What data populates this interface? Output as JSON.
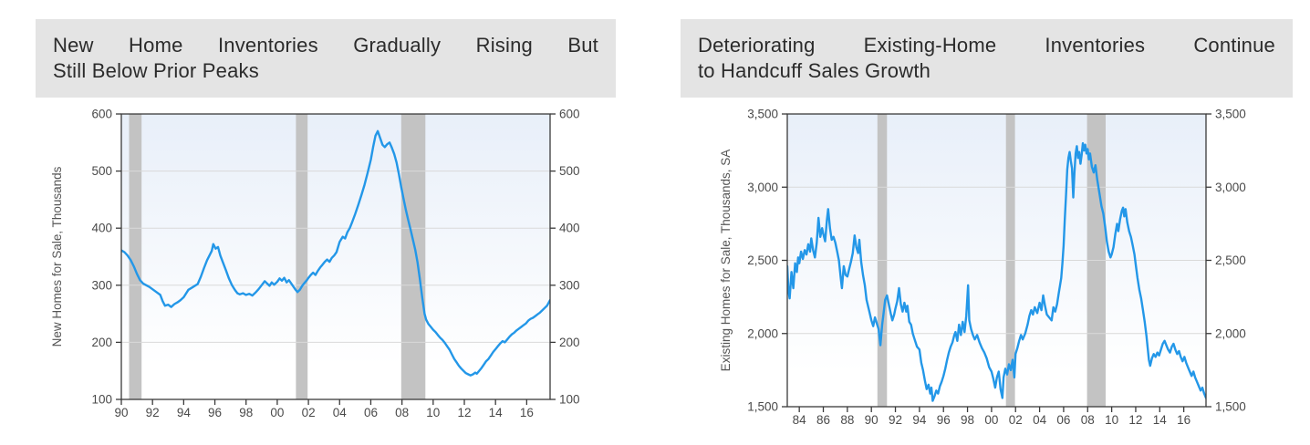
{
  "page": {
    "background": "#ffffff"
  },
  "charts_common": {
    "title_bg": "#e4e4e4",
    "title_color": "#2b2b2b",
    "axis_color": "#3a3a3a",
    "tick_label_color": "#4a4a4a",
    "y_axis_title_color": "#555555",
    "grid_color": "#d9d9d9",
    "plot_bg_top": "#e8eff9",
    "plot_bg_bottom": "#ffffff",
    "recession_band_color": "#c3c3c3",
    "line_color": "#2397e8"
  },
  "chart_data": [
    {
      "type": "line",
      "title": "New Home Inventories Gradually Rising But Still Below Prior Peaks",
      "title_lines": [
        "New Home Inventories Gradually Rising But",
        "Still Below Prior Peaks"
      ],
      "ylabel": "New Homes for Sale, Thousands",
      "xlim": [
        1990,
        2017.5
      ],
      "ylim": [
        100,
        600
      ],
      "yticks": [
        100,
        200,
        300,
        400,
        500,
        600
      ],
      "ytick_labels": [
        "100",
        "200",
        "300",
        "400",
        "500",
        "600"
      ],
      "xticks": [
        1990,
        1992,
        1994,
        1996,
        1998,
        2000,
        2002,
        2004,
        2006,
        2008,
        2010,
        2012,
        2014,
        2016
      ],
      "xtick_labels": [
        "90",
        "92",
        "94",
        "96",
        "98",
        "00",
        "02",
        "04",
        "06",
        "08",
        "10",
        "12",
        "14",
        "16"
      ],
      "grid": "horizontal-light",
      "legend": "none",
      "recession_bands": [
        [
          1990.5,
          1991.3
        ],
        [
          2001.2,
          2001.95
        ],
        [
          2007.95,
          2009.5
        ]
      ],
      "series": [
        {
          "x": [
            1990.0,
            1990.2,
            1990.4,
            1990.6,
            1990.8,
            1991.0,
            1991.2,
            1991.4,
            1991.6,
            1991.8,
            1992.0,
            1992.25,
            1992.5,
            1992.65,
            1992.8,
            1993.0,
            1993.2,
            1993.4,
            1993.6,
            1993.8,
            1994.0,
            1994.3,
            1994.6,
            1994.9,
            1995.1,
            1995.3,
            1995.5,
            1995.65,
            1995.8,
            1995.9,
            1996.05,
            1996.2,
            1996.35,
            1996.5,
            1996.7,
            1996.9,
            1997.1,
            1997.3,
            1997.45,
            1997.6,
            1997.8,
            1998.0,
            1998.2,
            1998.4,
            1998.6,
            1998.8,
            1999.0,
            1999.2,
            1999.35,
            1999.5,
            1999.65,
            1999.8,
            2000.0,
            2000.15,
            2000.3,
            2000.45,
            2000.6,
            2000.75,
            2000.9,
            2001.0,
            2001.15,
            2001.3,
            2001.45,
            2001.6,
            2001.75,
            2001.9,
            2002.0,
            2002.15,
            2002.3,
            2002.45,
            2002.6,
            2002.75,
            2002.9,
            2003.05,
            2003.2,
            2003.35,
            2003.5,
            2003.65,
            2003.8,
            2004.0,
            2004.2,
            2004.35,
            2004.5,
            2004.65,
            2004.8,
            2005.0,
            2005.2,
            2005.4,
            2005.6,
            2005.8,
            2006.0,
            2006.15,
            2006.3,
            2006.45,
            2006.6,
            2006.75,
            2006.9,
            2007.05,
            2007.2,
            2007.35,
            2007.5,
            2007.65,
            2007.8,
            2007.95,
            2008.1,
            2008.25,
            2008.4,
            2008.55,
            2008.7,
            2008.85,
            2009.0,
            2009.15,
            2009.3,
            2009.45,
            2009.55,
            2009.7,
            2009.85,
            2010.0,
            2010.15,
            2010.3,
            2010.45,
            2010.6,
            2010.75,
            2010.9,
            2011.05,
            2011.2,
            2011.35,
            2011.5,
            2011.65,
            2011.8,
            2011.95,
            2012.1,
            2012.25,
            2012.4,
            2012.55,
            2012.7,
            2012.8,
            2012.95,
            2013.1,
            2013.25,
            2013.4,
            2013.55,
            2013.7,
            2013.85,
            2014.0,
            2014.15,
            2014.3,
            2014.45,
            2014.6,
            2014.75,
            2014.9,
            2015.05,
            2015.2,
            2015.35,
            2015.5,
            2015.65,
            2015.8,
            2015.95,
            2016.1,
            2016.25,
            2016.4,
            2016.55,
            2016.7,
            2016.85,
            2017.0,
            2017.15,
            2017.3,
            2017.4,
            2017.5
          ],
          "y": [
            361,
            358,
            352,
            344,
            333,
            320,
            309,
            303,
            300,
            297,
            293,
            288,
            283,
            272,
            264,
            266,
            262,
            267,
            270,
            274,
            279,
            292,
            297,
            302,
            315,
            330,
            344,
            352,
            360,
            372,
            364,
            367,
            352,
            341,
            327,
            312,
            300,
            291,
            286,
            284,
            286,
            283,
            285,
            282,
            287,
            293,
            300,
            307,
            303,
            299,
            305,
            301,
            306,
            312,
            308,
            313,
            305,
            309,
            303,
            299,
            293,
            288,
            292,
            299,
            304,
            309,
            313,
            318,
            322,
            318,
            325,
            331,
            336,
            341,
            345,
            341,
            348,
            352,
            358,
            376,
            385,
            382,
            393,
            400,
            410,
            425,
            441,
            458,
            476,
            497,
            520,
            542,
            562,
            570,
            558,
            546,
            542,
            547,
            550,
            541,
            530,
            515,
            495,
            472,
            452,
            432,
            414,
            398,
            380,
            362,
            340,
            310,
            278,
            250,
            240,
            232,
            227,
            222,
            218,
            213,
            208,
            204,
            199,
            193,
            187,
            179,
            171,
            165,
            159,
            154,
            150,
            146,
            144,
            142,
            144,
            147,
            145,
            150,
            155,
            161,
            167,
            171,
            177,
            183,
            188,
            193,
            198,
            202,
            200,
            205,
            210,
            214,
            217,
            221,
            224,
            227,
            230,
            233,
            238,
            241,
            243,
            246,
            249,
            252,
            256,
            260,
            264,
            269,
            274
          ]
        }
      ]
    },
    {
      "type": "line",
      "title": "Deteriorating Existing-Home Inventories Continue to Handcuff Sales Growth",
      "title_lines": [
        "Deteriorating Existing-Home Inventories Continue",
        "to Handcuff Sales Growth"
      ],
      "ylabel": "Existing Homes for Sale, Thousands, SA",
      "xlim": [
        1983,
        2017.85
      ],
      "ylim": [
        1500,
        3500
      ],
      "yticks": [
        1500,
        2000,
        2500,
        3000,
        3500
      ],
      "ytick_labels": [
        "1,500",
        "2,000",
        "2,500",
        "3,000",
        "3,500"
      ],
      "xticks": [
        1984,
        1986,
        1988,
        1990,
        1992,
        1994,
        1996,
        1998,
        2000,
        2002,
        2004,
        2006,
        2008,
        2010,
        2012,
        2014,
        2016
      ],
      "xtick_labels": [
        "84",
        "86",
        "88",
        "90",
        "92",
        "94",
        "96",
        "98",
        "00",
        "02",
        "04",
        "06",
        "08",
        "10",
        "12",
        "14",
        "16"
      ],
      "grid": "horizontal-light",
      "legend": "none",
      "recession_bands": [
        [
          1990.5,
          1991.3
        ],
        [
          2001.2,
          2001.95
        ],
        [
          2007.95,
          2009.5
        ]
      ],
      "series": [
        {
          "x": [
            1983.0,
            1983.1,
            1983.2,
            1983.35,
            1983.5,
            1983.65,
            1983.8,
            1983.9,
            1984.0,
            1984.15,
            1984.3,
            1984.45,
            1984.6,
            1984.75,
            1984.9,
            1985.0,
            1985.15,
            1985.3,
            1985.45,
            1985.6,
            1985.75,
            1985.9,
            1986.0,
            1986.15,
            1986.3,
            1986.4,
            1986.55,
            1986.7,
            1986.85,
            1987.0,
            1987.15,
            1987.3,
            1987.45,
            1987.55,
            1987.7,
            1987.85,
            1988.0,
            1988.15,
            1988.3,
            1988.45,
            1988.6,
            1988.75,
            1988.9,
            1989.0,
            1989.15,
            1989.3,
            1989.45,
            1989.6,
            1989.8,
            1990.0,
            1990.15,
            1990.3,
            1990.45,
            1990.6,
            1990.75,
            1990.9,
            1991.0,
            1991.15,
            1991.3,
            1991.45,
            1991.6,
            1991.75,
            1991.9,
            1992.0,
            1992.15,
            1992.3,
            1992.45,
            1992.6,
            1992.75,
            1992.9,
            1993.0,
            1993.15,
            1993.3,
            1993.45,
            1993.6,
            1993.8,
            1994.0,
            1994.15,
            1994.3,
            1994.45,
            1994.6,
            1994.75,
            1994.9,
            1995.0,
            1995.1,
            1995.25,
            1995.4,
            1995.55,
            1995.7,
            1995.85,
            1996.0,
            1996.15,
            1996.3,
            1996.45,
            1996.6,
            1996.75,
            1996.9,
            1997.0,
            1997.15,
            1997.3,
            1997.45,
            1997.6,
            1997.75,
            1997.9,
            1998.05,
            1998.15,
            1998.3,
            1998.45,
            1998.6,
            1998.8,
            1999.0,
            1999.2,
            1999.4,
            1999.6,
            1999.8,
            2000.0,
            2000.15,
            2000.3,
            2000.45,
            2000.6,
            2000.75,
            2000.9,
            2001.0,
            2001.15,
            2001.3,
            2001.45,
            2001.6,
            2001.75,
            2001.9,
            2002.0,
            2002.15,
            2002.3,
            2002.45,
            2002.6,
            2002.8,
            2003.0,
            2003.15,
            2003.3,
            2003.45,
            2003.6,
            2003.8,
            2004.0,
            2004.15,
            2004.3,
            2004.45,
            2004.6,
            2004.8,
            2005.0,
            2005.15,
            2005.3,
            2005.45,
            2005.6,
            2005.8,
            2005.9,
            2006.0,
            2006.1,
            2006.2,
            2006.3,
            2006.4,
            2006.5,
            2006.6,
            2006.7,
            2006.8,
            2006.9,
            2007.0,
            2007.1,
            2007.2,
            2007.3,
            2007.4,
            2007.5,
            2007.6,
            2007.7,
            2007.8,
            2007.9,
            2008.0,
            2008.1,
            2008.2,
            2008.35,
            2008.5,
            2008.65,
            2008.8,
            2009.0,
            2009.15,
            2009.3,
            2009.45,
            2009.6,
            2009.75,
            2009.9,
            2010.0,
            2010.15,
            2010.3,
            2010.45,
            2010.55,
            2010.7,
            2010.85,
            2010.95,
            2011.05,
            2011.15,
            2011.3,
            2011.45,
            2011.6,
            2011.75,
            2011.9,
            2012.0,
            2012.15,
            2012.3,
            2012.45,
            2012.6,
            2012.75,
            2012.9,
            2013.0,
            2013.1,
            2013.2,
            2013.35,
            2013.5,
            2013.65,
            2013.8,
            2013.95,
            2014.1,
            2014.25,
            2014.4,
            2014.55,
            2014.7,
            2014.85,
            2015.0,
            2015.15,
            2015.3,
            2015.45,
            2015.6,
            2015.75,
            2015.9,
            2016.05,
            2016.2,
            2016.35,
            2016.5,
            2016.65,
            2016.8,
            2016.95,
            2017.1,
            2017.25,
            2017.4,
            2017.55,
            2017.7,
            2017.85
          ],
          "y": [
            2460,
            2290,
            2240,
            2420,
            2310,
            2480,
            2420,
            2520,
            2480,
            2560,
            2510,
            2570,
            2540,
            2610,
            2560,
            2650,
            2570,
            2520,
            2620,
            2790,
            2660,
            2720,
            2680,
            2630,
            2780,
            2850,
            2720,
            2640,
            2660,
            2620,
            2560,
            2500,
            2380,
            2310,
            2460,
            2400,
            2390,
            2440,
            2490,
            2550,
            2670,
            2590,
            2550,
            2640,
            2490,
            2400,
            2330,
            2230,
            2160,
            2090,
            2050,
            2110,
            2070,
            2030,
            1920,
            2060,
            2130,
            2230,
            2260,
            2200,
            2140,
            2090,
            2130,
            2170,
            2220,
            2310,
            2200,
            2150,
            2210,
            2150,
            2190,
            2080,
            2060,
            2000,
            1960,
            1910,
            1890,
            1800,
            1750,
            1680,
            1620,
            1650,
            1590,
            1630,
            1540,
            1570,
            1610,
            1590,
            1640,
            1670,
            1710,
            1760,
            1820,
            1870,
            1910,
            1940,
            1990,
            2010,
            1950,
            2060,
            1990,
            2080,
            2010,
            2120,
            2330,
            2090,
            2030,
            1990,
            1960,
            1990,
            1940,
            1900,
            1870,
            1830,
            1770,
            1740,
            1690,
            1630,
            1700,
            1740,
            1620,
            1560,
            1700,
            1760,
            1720,
            1790,
            1750,
            1820,
            1700,
            1860,
            1900,
            1950,
            1990,
            1960,
            2000,
            2060,
            2120,
            2160,
            2130,
            2180,
            2140,
            2210,
            2160,
            2260,
            2190,
            2130,
            2110,
            2090,
            2180,
            2150,
            2200,
            2280,
            2380,
            2480,
            2600,
            2780,
            2950,
            3120,
            3200,
            3240,
            3180,
            3130,
            2930,
            3100,
            3230,
            3280,
            3200,
            3240,
            3160,
            3220,
            3300,
            3250,
            3290,
            3230,
            3260,
            3190,
            3230,
            3140,
            3100,
            3150,
            3050,
            2950,
            2870,
            2820,
            2730,
            2630,
            2560,
            2520,
            2540,
            2590,
            2680,
            2750,
            2700,
            2780,
            2840,
            2860,
            2800,
            2850,
            2760,
            2700,
            2660,
            2600,
            2540,
            2470,
            2380,
            2300,
            2240,
            2160,
            2080,
            1980,
            1900,
            1820,
            1780,
            1830,
            1860,
            1840,
            1870,
            1850,
            1890,
            1930,
            1950,
            1920,
            1890,
            1870,
            1910,
            1930,
            1890,
            1860,
            1880,
            1840,
            1810,
            1840,
            1800,
            1770,
            1740,
            1710,
            1740,
            1700,
            1670,
            1640,
            1610,
            1630,
            1590,
            1560
          ]
        }
      ]
    }
  ]
}
